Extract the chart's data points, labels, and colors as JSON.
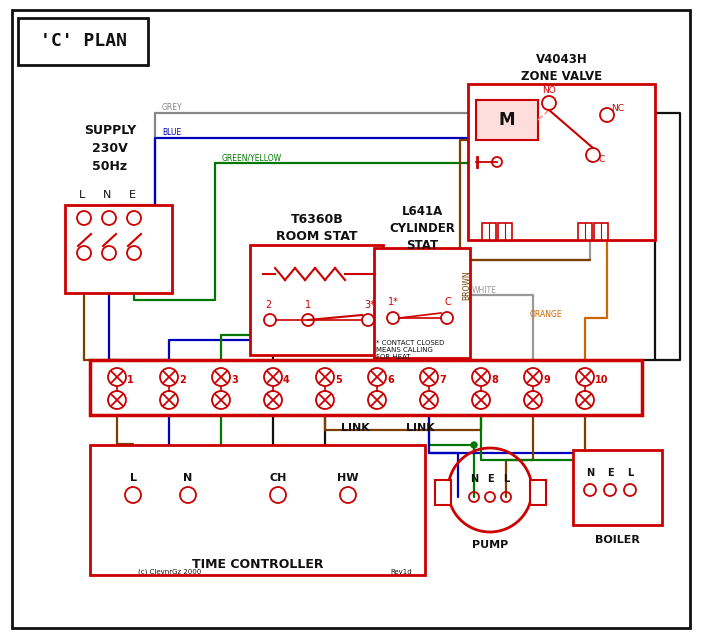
{
  "title": "'C' PLAN",
  "bg": "#ffffff",
  "RED": "#cc0000",
  "BLUE": "#0000bb",
  "GREEN": "#007700",
  "BROWN": "#7B3F00",
  "GREY": "#888888",
  "ORANGE": "#CC6600",
  "BLACK": "#111111",
  "WW": "#999999",
  "supply_text": "SUPPLY\n230V\n50Hz",
  "zone_valve_text": "V4043H\nZONE VALVE",
  "room_stat_text": "T6360B\nROOM STAT",
  "cyl_stat_text": "L641A\nCYLINDER\nSTAT",
  "tc_text": "TIME CONTROLLER",
  "pump_text": "PUMP",
  "boiler_text": "BOILER",
  "link_text": "LINK",
  "contact_note": "* CONTACT CLOSED\nMEANS CALLING\nFOR HEAT",
  "copyright": "(c) ClevnrGz 2000",
  "rev": "Rev1d",
  "term_nums": [
    "1",
    "2",
    "3",
    "4",
    "5",
    "6",
    "7",
    "8",
    "9",
    "10"
  ],
  "lne": [
    "L",
    "N",
    "E"
  ],
  "tc_terminals": [
    "L",
    "N",
    "CH",
    "HW"
  ],
  "grey_label": "GREY",
  "blue_label": "BLUE",
  "gy_label": "GREEN/YELLOW",
  "brown_label": "BROWN",
  "white_label": "WHITE",
  "orange_label": "ORANGE"
}
